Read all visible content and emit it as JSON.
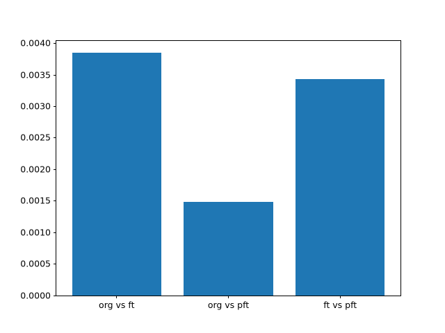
{
  "chart_data": {
    "type": "bar",
    "categories": [
      "org vs ft",
      "org vs pft",
      "ft vs pft"
    ],
    "values": [
      0.00385,
      0.00149,
      0.00343
    ],
    "title": "",
    "xlabel": "",
    "ylabel": "",
    "ylim": [
      0,
      0.00404
    ],
    "xlim": [
      -0.54,
      2.54
    ],
    "bar_width": 0.8,
    "yticks": [
      0.0,
      0.0005,
      0.001,
      0.0015,
      0.002,
      0.0025,
      0.003,
      0.0035,
      0.004
    ],
    "ytick_labels": [
      "0.0000",
      "0.0005",
      "0.0010",
      "0.0015",
      "0.0020",
      "0.0025",
      "0.0030",
      "0.0035",
      "0.0040"
    ],
    "bar_color": "#1f77b4",
    "spine_color": "#000000",
    "background_color": "#ffffff",
    "grid": false,
    "legend": null
  }
}
